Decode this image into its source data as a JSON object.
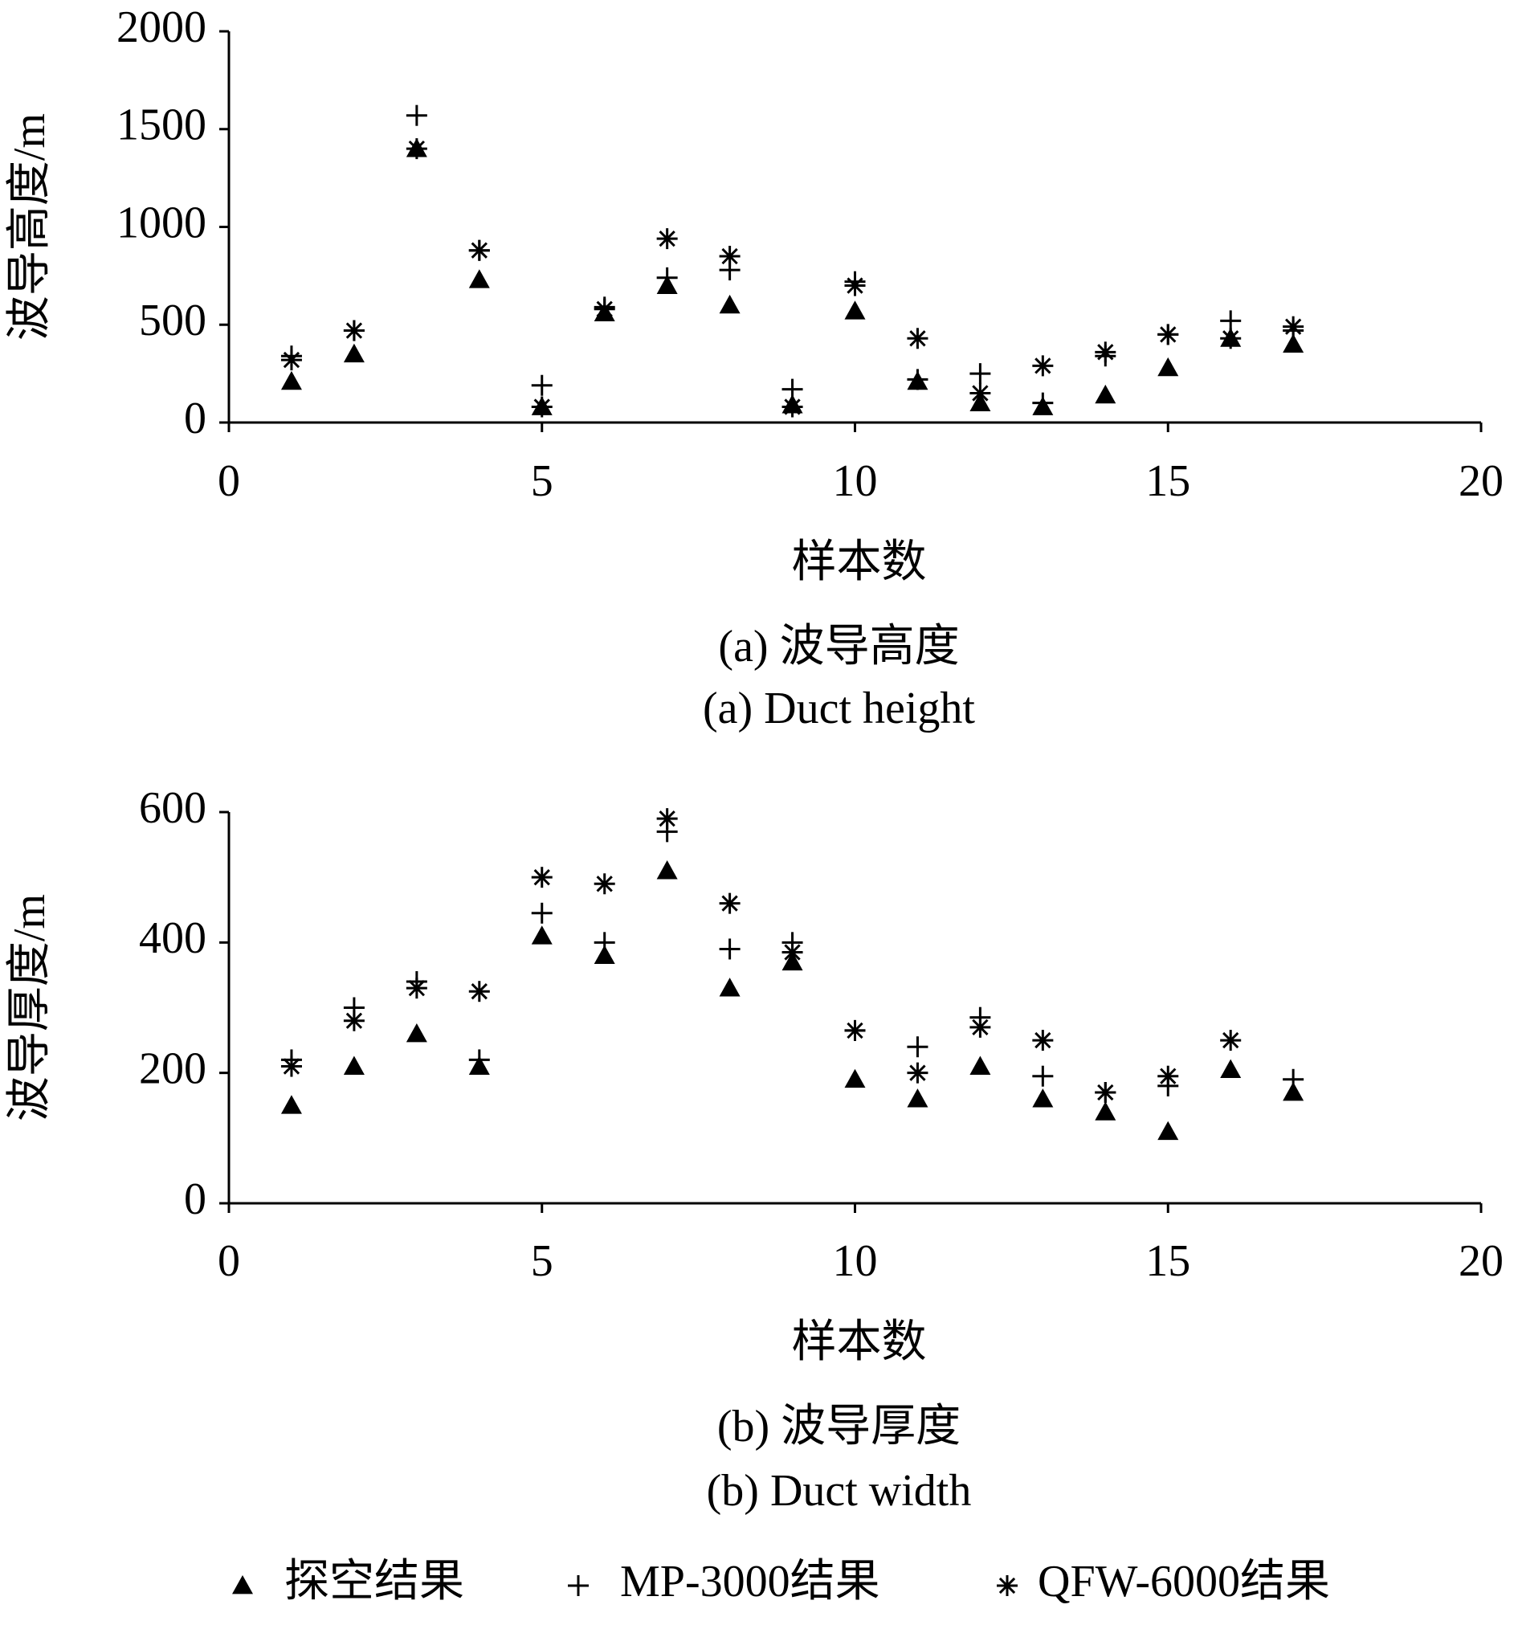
{
  "chart_data": [
    {
      "type": "scatter",
      "title": "(a) 波导高度",
      "subtitle": "(a) Duct height",
      "x_label": "样本数",
      "y_label": "波导高度/m",
      "x": [
        1,
        2,
        3,
        4,
        5,
        6,
        7,
        8,
        9,
        10,
        11,
        12,
        13,
        14,
        15,
        16,
        17
      ],
      "xlim": [
        0,
        20
      ],
      "xticks": [
        0,
        5,
        10,
        15,
        20
      ],
      "ylim": [
        0,
        2000
      ],
      "yticks": [
        0,
        500,
        1000,
        1500,
        2000
      ],
      "series": [
        {
          "name": "探空结果",
          "color": "#000000",
          "marker": "triangle",
          "values": [
            210,
            350,
            1400,
            730,
            80,
            560,
            700,
            600,
            90,
            570,
            210,
            100,
            80,
            140,
            280,
            430,
            400
          ]
        },
        {
          "name": "MP-3000结果",
          "color": "#000000",
          "marker": "plus",
          "values": [
            340,
            470,
            1570,
            880,
            190,
            590,
            740,
            780,
            170,
            720,
            220,
            250,
            100,
            340,
            450,
            520,
            470
          ]
        },
        {
          "name": "QFW-6000结果",
          "color": "#000000",
          "marker": "asterisk",
          "values": [
            320,
            470,
            1400,
            880,
            80,
            580,
            940,
            850,
            80,
            700,
            430,
            150,
            290,
            360,
            450,
            430,
            490
          ]
        }
      ]
    },
    {
      "type": "scatter",
      "title": "(b) 波导厚度",
      "subtitle": "(b) Duct width",
      "x_label": "样本数",
      "y_label": "波导厚度/m",
      "x": [
        1,
        2,
        3,
        4,
        5,
        6,
        7,
        8,
        9,
        10,
        11,
        12,
        13,
        14,
        15,
        16,
        17
      ],
      "xlim": [
        0,
        20
      ],
      "xticks": [
        0,
        5,
        10,
        15,
        20
      ],
      "ylim": [
        0,
        600
      ],
      "yticks": [
        0,
        200,
        400,
        600
      ],
      "series": [
        {
          "color": "#000000",
          "marker": "triangle",
          "values": [
            150,
            210,
            260,
            210,
            410,
            380,
            510,
            330,
            370,
            190,
            160,
            210,
            160,
            140,
            110,
            205,
            170
          ]
        },
        {
          "color": "#000000",
          "marker": "plus",
          "values": [
            220,
            300,
            340,
            220,
            445,
            400,
            570,
            390,
            400,
            265,
            240,
            285,
            195,
            170,
            180,
            null,
            190
          ]
        },
        {
          "color": "#000000",
          "marker": "asterisk",
          "values": [
            210,
            280,
            330,
            325,
            500,
            490,
            590,
            460,
            385,
            265,
            200,
            270,
            250,
            170,
            195,
            250,
            null
          ]
        }
      ]
    }
  ]
}
